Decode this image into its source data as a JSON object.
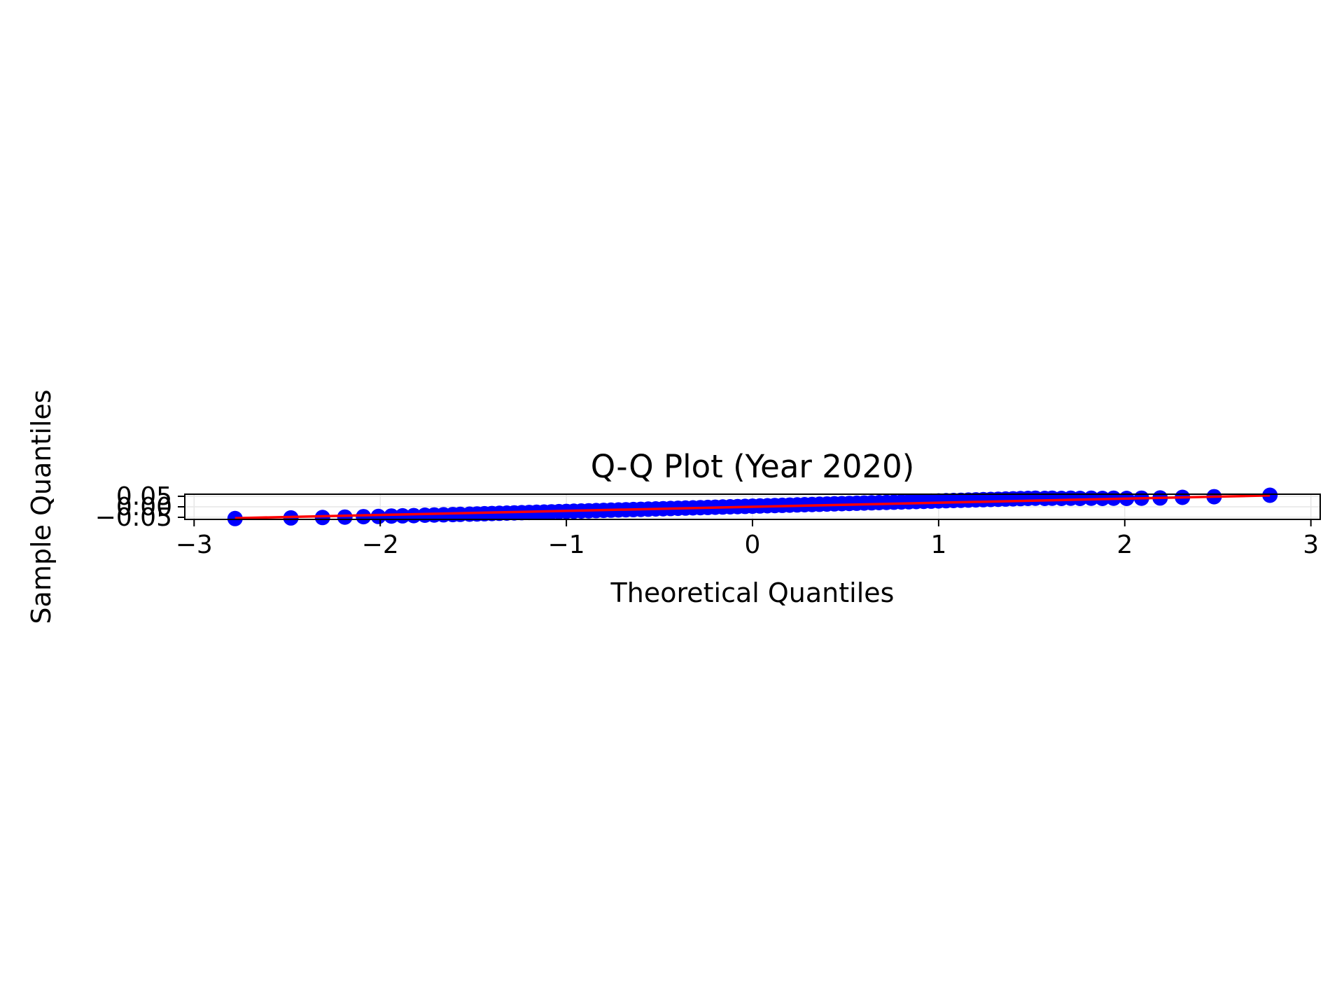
{
  "chart_data": {
    "type": "scatter",
    "title": "Q-Q Plot (Year 2020)",
    "xlabel": "Theoretical Quantiles",
    "ylabel": "Sample Quantiles",
    "xlim": [
      -3.05,
      3.05
    ],
    "ylim": [
      -0.06,
      0.06
    ],
    "x_ticks": [
      -3,
      -2,
      -1,
      0,
      1,
      2,
      3
    ],
    "x_tick_labels": [
      "−3",
      "−2",
      "−1",
      "0",
      "1",
      "2",
      "3"
    ],
    "y_ticks": [
      -0.05,
      0.0,
      0.05
    ],
    "y_tick_labels": [
      "−0.05",
      "0.00",
      "0.05"
    ],
    "grid": true,
    "legend": "none",
    "colors": {
      "points": "#0000ff",
      "line": "#ff0000",
      "grid": "#e6e6e6"
    },
    "series": [
      {
        "type": "scatter",
        "marker": "circle",
        "x": [
          -2.78,
          -2.48,
          -2.31,
          -2.19,
          -2.09,
          -2.01,
          -1.94,
          -1.88,
          -1.82,
          -1.76,
          -1.71,
          -1.66,
          -1.61,
          -1.57,
          -1.52,
          -1.48,
          -1.44,
          -1.4,
          -1.36,
          -1.32,
          -1.28,
          -1.24,
          -1.2,
          -1.16,
          -1.12,
          -1.08,
          -1.04,
          -1.0,
          -0.96,
          -0.92,
          -0.88,
          -0.84,
          -0.8,
          -0.76,
          -0.72,
          -0.68,
          -0.64,
          -0.6,
          -0.56,
          -0.52,
          -0.48,
          -0.44,
          -0.4,
          -0.36,
          -0.32,
          -0.28,
          -0.24,
          -0.2,
          -0.16,
          -0.12,
          -0.08,
          -0.04,
          0.0,
          0.04,
          0.08,
          0.12,
          0.16,
          0.2,
          0.24,
          0.28,
          0.32,
          0.36,
          0.4,
          0.44,
          0.48,
          0.52,
          0.56,
          0.6,
          0.64,
          0.68,
          0.72,
          0.76,
          0.8,
          0.84,
          0.88,
          0.92,
          0.96,
          1.0,
          1.04,
          1.08,
          1.12,
          1.16,
          1.2,
          1.24,
          1.28,
          1.32,
          1.36,
          1.4,
          1.44,
          1.48,
          1.52,
          1.57,
          1.61,
          1.66,
          1.71,
          1.76,
          1.82,
          1.88,
          1.94,
          2.01,
          2.09,
          2.19,
          2.31,
          2.48,
          2.78
        ],
        "y": [
          -0.056,
          -0.053,
          -0.051,
          -0.049,
          -0.047,
          -0.046,
          -0.044,
          -0.043,
          -0.042,
          -0.04,
          -0.039,
          -0.038,
          -0.037,
          -0.036,
          -0.035,
          -0.034,
          -0.033,
          -0.032,
          -0.031,
          -0.03,
          -0.029,
          -0.028,
          -0.027,
          -0.026,
          -0.025,
          -0.024,
          -0.023,
          -0.022,
          -0.021,
          -0.02,
          -0.019,
          -0.018,
          -0.017,
          -0.016,
          -0.015,
          -0.014,
          -0.013,
          -0.012,
          -0.011,
          -0.01,
          -0.009,
          -0.008,
          -0.007,
          -0.006,
          -0.005,
          -0.004,
          -0.003,
          -0.002,
          -0.001,
          0.0,
          0.001,
          0.002,
          0.003,
          0.004,
          0.005,
          0.006,
          0.007,
          0.008,
          0.009,
          0.01,
          0.011,
          0.012,
          0.013,
          0.014,
          0.015,
          0.016,
          0.017,
          0.018,
          0.019,
          0.02,
          0.021,
          0.022,
          0.023,
          0.024,
          0.025,
          0.026,
          0.027,
          0.028,
          0.029,
          0.03,
          0.031,
          0.032,
          0.033,
          0.034,
          0.035,
          0.036,
          0.037,
          0.038,
          0.039,
          0.04,
          0.041,
          0.04,
          0.041,
          0.04,
          0.041,
          0.04,
          0.041,
          0.04,
          0.041,
          0.04,
          0.041,
          0.042,
          0.045,
          0.048,
          0.055
        ]
      },
      {
        "type": "line",
        "x": [
          -2.78,
          2.78
        ],
        "y": [
          -0.054,
          0.054
        ]
      }
    ]
  }
}
